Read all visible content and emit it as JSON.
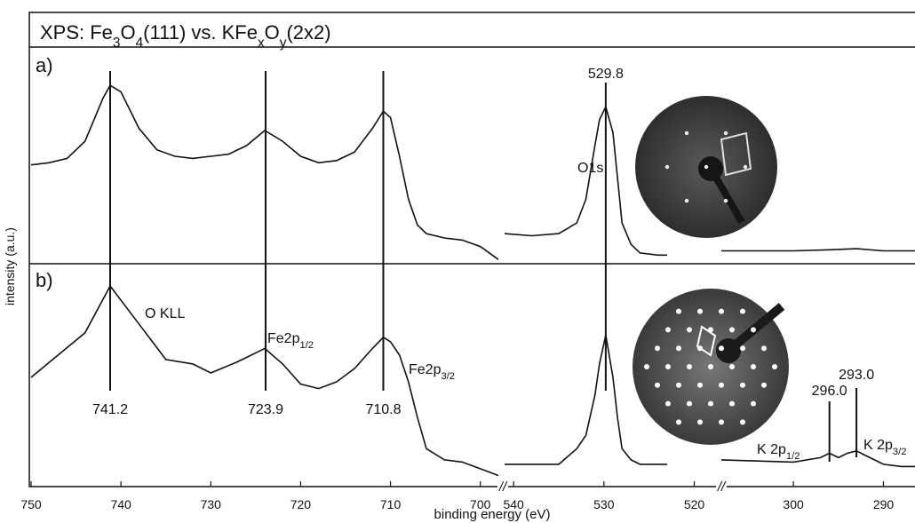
{
  "chart_data": {
    "type": "line",
    "title_parts": [
      {
        "text": "XPS: Fe"
      },
      {
        "text": "3",
        "sub": true
      },
      {
        "text": "O"
      },
      {
        "text": "4",
        "sub": true
      },
      {
        "text": "(111) vs. KFe"
      },
      {
        "text": "x",
        "sub": true
      },
      {
        "text": "O"
      },
      {
        "text": "y",
        "sub": true
      },
      {
        "text": "(2x2)"
      }
    ],
    "xlabel": "binding energy (eV)",
    "ylabel": "intensity (a.u.)",
    "color": "#111111",
    "x_segments": [
      {
        "xlim": [
          750,
          697.5
        ],
        "xticks": [
          750,
          740,
          730,
          720,
          710,
          700
        ]
      },
      {
        "xlim": [
          541,
          517
        ],
        "xticks": [
          540,
          530,
          520
        ]
      },
      {
        "xlim": [
          308,
          286.5
        ],
        "xticks": [
          300,
          290
        ]
      }
    ],
    "break_mark": "//",
    "peaks": [
      {
        "value": 741.2,
        "label": "741.2"
      },
      {
        "value": 723.9,
        "label": "723.9"
      },
      {
        "value": 710.8,
        "label": "710.8"
      },
      {
        "value": 529.8,
        "label": "529.8"
      }
    ],
    "panels": [
      {
        "label": "a)",
        "ylim": [
          0,
          100
        ],
        "segments": [
          {
            "x": [
              750,
              748,
              746,
              744,
              742,
              741.2,
              740,
              738,
              736,
              734,
              732,
              730,
              728,
              726,
              724,
              722,
              720,
              718,
              716,
              714,
              712,
              710.8,
              710,
              709,
              708,
              707,
              706,
              704,
              702,
              700,
              698
            ],
            "values": [
              46,
              47,
              49,
              57,
              77,
              83,
              80,
              63,
              53,
              50,
              49,
              50,
              51,
              55,
              62,
              57,
              50,
              47,
              48,
              52,
              63,
              71,
              68,
              50,
              30,
              18,
              14,
              12,
              11,
              8,
              2
            ]
          },
          {
            "x": [
              541,
              538,
              535,
              533,
              532,
              531,
              530.5,
              529.8,
              529,
              528.5,
              528,
              527,
              526,
              524,
              523
            ],
            "values": [
              14,
              13,
              14,
              19,
              30,
              55,
              67,
              73,
              61,
              40,
              19,
              9,
              5,
              4,
              4
            ]
          },
          {
            "x": [
              308,
              304,
              300,
              296,
              293,
              290,
              286.5
            ],
            "values": [
              6,
              6,
              6,
              6.5,
              7,
              6,
              6
            ]
          }
        ],
        "annotations": [
          [
            {
              "text": "O1s"
            }
          ]
        ],
        "peaks": []
      },
      {
        "label": "b)",
        "ylim": [
          0,
          100
        ],
        "segments": [
          {
            "x": [
              750,
              744,
              741.2,
              738,
              735,
              732,
              730,
              727,
              724,
              722,
              720,
              718,
              716,
              714,
              712,
              710.8,
              710,
              709,
              708,
              707,
              706,
              704,
              702,
              700,
              698
            ],
            "values": [
              49,
              69,
              90,
              73,
              57,
              55,
              51,
              56,
              62,
              55,
              46,
              44,
              47,
              53,
              62,
              67,
              65,
              59,
              47,
              31,
              17,
              12,
              11,
              8,
              5
            ]
          },
          {
            "x": [
              541,
              535,
              533,
              532,
              531,
              530.5,
              529.8,
              529,
              528.5,
              528,
              527,
              526,
              523
            ],
            "values": [
              10,
              10,
              17,
              23,
              41,
              55,
              68,
              49,
              31,
              17,
              12,
              10,
              10
            ]
          },
          {
            "x": [
              308,
              300,
              297,
              296,
              295,
              294,
              293,
              292,
              290,
              288,
              286.5
            ],
            "values": [
              12,
              11,
              13,
              15,
              13,
              15,
              16,
              14,
              10,
              9,
              9
            ]
          }
        ],
        "annotations": [
          [
            {
              "text": "O KLL"
            }
          ],
          [
            {
              "text": "Fe2p"
            },
            {
              "text": "1/2",
              "sub": true
            }
          ],
          [
            {
              "text": "Fe2p"
            },
            {
              "text": "3/2",
              "sub": true
            }
          ],
          [
            {
              "text": "K 2p"
            },
            {
              "text": "1/2",
              "sub": true
            }
          ],
          [
            {
              "text": "K 2p"
            },
            {
              "text": "3/2",
              "sub": true
            }
          ]
        ],
        "peaks": [
          {
            "value": 296,
            "label": "296.0"
          },
          {
            "value": 293,
            "label": "293.0"
          }
        ]
      }
    ]
  }
}
